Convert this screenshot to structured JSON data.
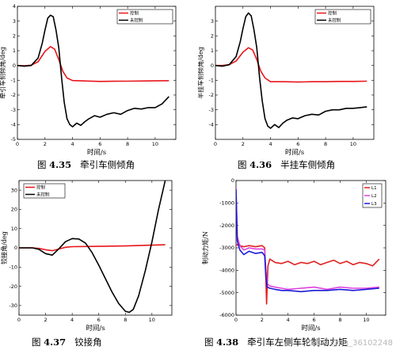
{
  "captions": [
    {
      "prefix": "图 ",
      "num": "4.35",
      "text": "牵引车侧倾角"
    },
    {
      "prefix": "图 ",
      "num": "4.36",
      "text": "半挂车侧倾角"
    },
    {
      "prefix": "图 ",
      "num": "4.37",
      "text": "铰接角"
    },
    {
      "prefix": "图 ",
      "num": "4.38",
      "text": "牵引车左侧车轮制动力矩"
    }
  ],
  "watermark": "CSDN @qq_36102248",
  "colors": {
    "controlled": "#e8161c",
    "uncontrolled": "#000000",
    "L1": "#e02020",
    "L2": "#e040e0",
    "L3": "#1a1ad8"
  },
  "chart_data": [
    {
      "type": "line",
      "xlabel": "时间/s",
      "ylabel": "牵引车侧倾角/deg",
      "xlim": [
        0,
        11.5
      ],
      "ylim": [
        -5,
        4
      ],
      "xticks": [
        0,
        2,
        4,
        6,
        8,
        10
      ],
      "yticks": [
        -5,
        -4,
        -3,
        -2,
        -1,
        0,
        1,
        2,
        3,
        4
      ],
      "legend_position": "top-right",
      "series": [
        {
          "name": "控制",
          "color": "#e8161c",
          "x": [
            0,
            0.5,
            1,
            1.5,
            2,
            2.4,
            2.7,
            3,
            3.3,
            3.6,
            4,
            5,
            6,
            7,
            8,
            9,
            10,
            11
          ],
          "y": [
            0,
            -0.02,
            0.02,
            0.25,
            0.95,
            1.28,
            1.1,
            0.4,
            -0.4,
            -0.85,
            -1.02,
            -1.05,
            -1.08,
            -1.07,
            -1.06,
            -1.05,
            -1.04,
            -1.03
          ]
        },
        {
          "name": "未控制",
          "color": "#000000",
          "x": [
            0,
            0.5,
            1,
            1.5,
            1.8,
            2,
            2.2,
            2.4,
            2.6,
            2.8,
            3,
            3.2,
            3.4,
            3.6,
            3.8,
            4,
            4.3,
            4.6,
            4.9,
            5.2,
            5.6,
            6,
            6.5,
            7,
            7.5,
            8,
            8.5,
            9,
            9.5,
            10,
            10.5,
            11
          ],
          "y": [
            0,
            -0.05,
            0,
            0.5,
            1.5,
            2.4,
            3.2,
            3.4,
            3.3,
            2.4,
            1.2,
            -0.8,
            -2.5,
            -3.6,
            -4.0,
            -4.15,
            -3.9,
            -4.05,
            -3.8,
            -3.6,
            -3.4,
            -3.5,
            -3.3,
            -3.2,
            -3.3,
            -3.05,
            -2.9,
            -2.95,
            -2.85,
            -2.85,
            -2.6,
            -2.1
          ]
        }
      ]
    },
    {
      "type": "line",
      "xlabel": "时间/s",
      "ylabel": "半挂车侧倾角/deg",
      "xlim": [
        0,
        11.5
      ],
      "ylim": [
        -5,
        4
      ],
      "xticks": [
        0,
        2,
        4,
        6,
        8,
        10
      ],
      "yticks": [
        -4,
        -3,
        -2,
        -1,
        0,
        1,
        2,
        3
      ],
      "legend_position": "top-right",
      "series": [
        {
          "name": "控制",
          "color": "#e8161c",
          "x": [
            0,
            0.5,
            1,
            1.5,
            2,
            2.4,
            2.7,
            3,
            3.3,
            3.6,
            4,
            5,
            6,
            7,
            8,
            9,
            10,
            11
          ],
          "y": [
            0,
            0,
            0.05,
            0.3,
            0.9,
            1.2,
            1.05,
            0.4,
            -0.4,
            -0.85,
            -1.1,
            -1.1,
            -1.12,
            -1.1,
            -1.1,
            -1.08,
            -1.08,
            -1.06
          ]
        },
        {
          "name": "未控制",
          "color": "#000000",
          "x": [
            0,
            0.5,
            1,
            1.5,
            1.8,
            2,
            2.2,
            2.4,
            2.6,
            2.8,
            3,
            3.2,
            3.4,
            3.6,
            3.8,
            4,
            4.3,
            4.6,
            4.9,
            5.2,
            5.6,
            6,
            6.5,
            7,
            7.5,
            8,
            8.5,
            9,
            9.5,
            10,
            10.5,
            11
          ],
          "y": [
            0,
            -0.05,
            0.05,
            0.6,
            1.6,
            2.5,
            3.3,
            3.55,
            3.35,
            2.4,
            1.2,
            -0.8,
            -2.4,
            -3.6,
            -4.1,
            -4.25,
            -4.0,
            -4.2,
            -3.9,
            -3.7,
            -3.55,
            -3.6,
            -3.4,
            -3.3,
            -3.35,
            -3.1,
            -3.0,
            -3.0,
            -2.9,
            -2.9,
            -2.85,
            -2.8
          ]
        }
      ]
    },
    {
      "type": "line",
      "xlabel": "时间/s",
      "ylabel": "铰接角/deg",
      "xlim": [
        0,
        11.5
      ],
      "ylim": [
        -35,
        35
      ],
      "xticks": [
        0,
        2,
        4,
        6,
        8,
        10
      ],
      "yticks": [
        -30,
        -20,
        -10,
        0,
        10,
        20,
        30
      ],
      "legend_position": "top-left",
      "series": [
        {
          "name": "控制",
          "color": "#e8161c",
          "x": [
            0,
            1,
            1.5,
            2,
            2.5,
            3,
            3.5,
            4,
            5,
            6,
            7,
            8,
            9,
            10,
            11
          ],
          "y": [
            0,
            0,
            -0.3,
            -1.0,
            -1.5,
            -0.6,
            0.3,
            0.6,
            0.7,
            0.8,
            0.9,
            1.0,
            1.2,
            1.4,
            1.6
          ]
        },
        {
          "name": "未控制",
          "color": "#000000",
          "x": [
            0,
            1,
            1.5,
            2,
            2.5,
            3,
            3.5,
            4,
            4.5,
            5,
            5.5,
            6,
            6.5,
            7,
            7.5,
            8,
            8.3,
            8.6,
            9,
            9.5,
            10,
            10.5,
            11
          ],
          "y": [
            0,
            0,
            -0.8,
            -3.0,
            -3.8,
            -0.5,
            3.2,
            4.8,
            4.6,
            2.5,
            -2.5,
            -9,
            -16,
            -23,
            -29,
            -33,
            -33.5,
            -32,
            -25,
            -12,
            3,
            20,
            35
          ]
        }
      ]
    },
    {
      "type": "line",
      "xlabel": "时间/s",
      "ylabel": "制动力矩/N",
      "xlim": [
        0,
        11.5
      ],
      "ylim": [
        -6000,
        0
      ],
      "xticks": [
        0,
        2,
        4,
        6,
        8,
        10
      ],
      "yticks": [
        -6000,
        -5000,
        -4000,
        -3000,
        -2000,
        -1000,
        0
      ],
      "legend_position": "top-right",
      "series": [
        {
          "name": "L1",
          "color": "#e02020",
          "x": [
            0,
            0.3,
            0.6,
            1,
            1.5,
            2,
            2.2,
            2.3,
            2.35,
            2.45,
            2.6,
            3,
            3.5,
            4,
            4.5,
            5,
            5.5,
            6,
            6.5,
            7,
            7.5,
            8,
            8.5,
            9,
            9.5,
            10,
            10.5,
            11
          ],
          "y": [
            -2850,
            -2900,
            -2950,
            -2900,
            -2950,
            -2900,
            -3000,
            -4500,
            -5500,
            -3800,
            -3500,
            -3650,
            -3700,
            -3600,
            -3750,
            -3650,
            -3700,
            -3600,
            -3750,
            -3650,
            -3550,
            -3700,
            -3600,
            -3750,
            -3650,
            -3700,
            -3800,
            -3500
          ]
        },
        {
          "name": "L2",
          "color": "#e040e0",
          "x": [
            0,
            0.1,
            0.3,
            0.6,
            1,
            1.5,
            2,
            2.2,
            2.3,
            2.4,
            2.6,
            3,
            3.5,
            4,
            5,
            6,
            7,
            8,
            9,
            10,
            11
          ],
          "y": [
            -300,
            -2500,
            -2900,
            -3100,
            -3000,
            -3050,
            -3050,
            -3100,
            -4000,
            -4600,
            -4700,
            -4750,
            -4800,
            -4850,
            -4800,
            -4750,
            -4850,
            -4750,
            -4800,
            -4800,
            -4750
          ]
        },
        {
          "name": "L3",
          "color": "#1a1ad8",
          "x": [
            0,
            0.1,
            0.3,
            0.6,
            1,
            1.5,
            2,
            2.2,
            2.3,
            2.4,
            2.6,
            3,
            3.5,
            4,
            5,
            6,
            7,
            8,
            9,
            10,
            11
          ],
          "y": [
            -400,
            -2700,
            -3100,
            -3300,
            -3150,
            -3250,
            -3200,
            -3350,
            -4300,
            -4750,
            -4800,
            -4850,
            -4900,
            -4900,
            -4950,
            -4900,
            -4900,
            -4850,
            -4900,
            -4850,
            -4800
          ]
        }
      ]
    }
  ]
}
